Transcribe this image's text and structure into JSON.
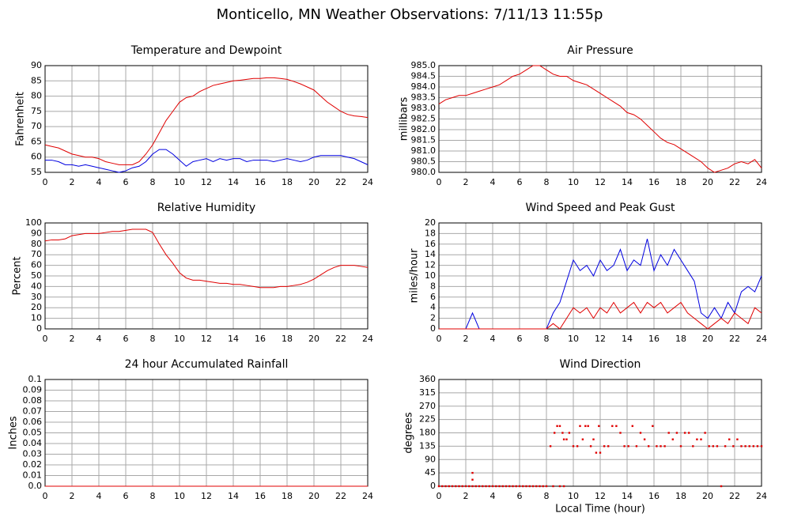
{
  "title": "Monticello, MN Weather Observations: 7/11/13 11:55p",
  "chart_data": [
    {
      "type": "line",
      "title": "Temperature and Dewpoint",
      "ylabel": "Fahrenheit",
      "x": [
        0,
        0.5,
        1,
        1.5,
        2,
        2.5,
        3,
        3.5,
        4,
        4.5,
        5,
        5.5,
        6,
        6.5,
        7,
        7.5,
        8,
        8.5,
        9,
        9.5,
        10,
        10.5,
        11,
        11.5,
        12,
        12.5,
        13,
        13.5,
        14,
        14.5,
        15,
        15.5,
        16,
        16.5,
        17,
        17.5,
        18,
        18.5,
        19,
        19.5,
        20,
        20.5,
        21,
        21.5,
        22,
        22.5,
        23,
        23.5,
        24
      ],
      "series": [
        {
          "color": "#e00000",
          "values": [
            64,
            63.5,
            63,
            62,
            61,
            60.5,
            60,
            60,
            59.5,
            58.5,
            58,
            57.5,
            57.5,
            57.5,
            58.5,
            61,
            64,
            68,
            72,
            75,
            78,
            79.5,
            80,
            81.5,
            82.5,
            83.5,
            84,
            84.5,
            85,
            85.2,
            85.5,
            85.8,
            85.8,
            86,
            86,
            85.8,
            85.5,
            84.8,
            84,
            83,
            82,
            80,
            78,
            76.5,
            75,
            74,
            73.5,
            73.3,
            73
          ]
        },
        {
          "color": "#0000e0",
          "values": [
            59,
            59,
            58.5,
            57.5,
            57.5,
            57,
            57.5,
            57,
            56.5,
            56,
            55.5,
            55,
            55.5,
            56.5,
            57,
            58.5,
            61,
            62.5,
            62.5,
            61,
            59,
            57,
            58.5,
            59,
            59.5,
            58.5,
            59.5,
            59,
            59.5,
            59.5,
            58.5,
            59,
            59,
            59,
            58.5,
            59,
            59.5,
            59,
            58.5,
            59,
            60,
            60.5,
            60.5,
            60.5,
            60.5,
            60,
            59.5,
            58.5,
            57.5
          ]
        }
      ],
      "xlim": [
        0,
        24
      ],
      "xticks": [
        0,
        2,
        4,
        6,
        8,
        10,
        12,
        14,
        16,
        18,
        20,
        22,
        24
      ],
      "ylim": [
        55,
        90
      ],
      "yticks": [
        55,
        60,
        65,
        70,
        75,
        80,
        85,
        90
      ],
      "grid": true
    },
    {
      "type": "line",
      "title": "Air Pressure",
      "ylabel": "millibars",
      "x": [
        0,
        0.5,
        1,
        1.5,
        2,
        2.5,
        3,
        3.5,
        4,
        4.5,
        5,
        5.5,
        6,
        6.5,
        7,
        7.5,
        8,
        8.5,
        9,
        9.5,
        10,
        10.5,
        11,
        11.5,
        12,
        12.5,
        13,
        13.5,
        14,
        14.5,
        15,
        15.5,
        16,
        16.5,
        17,
        17.5,
        18,
        18.5,
        19,
        19.5,
        20,
        20.5,
        21,
        21.5,
        22,
        22.5,
        23,
        23.5,
        24
      ],
      "series": [
        {
          "color": "#e00000",
          "values": [
            983.2,
            983.4,
            983.5,
            983.6,
            983.6,
            983.7,
            983.8,
            983.9,
            984.0,
            984.1,
            984.3,
            984.5,
            984.6,
            984.8,
            985.0,
            985.0,
            984.8,
            984.6,
            984.5,
            984.5,
            984.3,
            984.2,
            984.1,
            983.9,
            983.7,
            983.5,
            983.3,
            983.1,
            982.8,
            982.7,
            982.5,
            982.2,
            981.9,
            981.6,
            981.4,
            981.3,
            981.1,
            980.9,
            980.7,
            980.5,
            980.2,
            980.0,
            980.1,
            980.2,
            980.4,
            980.5,
            980.4,
            980.6,
            980.2
          ]
        }
      ],
      "xlim": [
        0,
        24
      ],
      "xticks": [
        0,
        2,
        4,
        6,
        8,
        10,
        12,
        14,
        16,
        18,
        20,
        22,
        24
      ],
      "ylim": [
        980,
        985
      ],
      "yticks": [
        {
          "value": 980,
          "label": "980.0"
        },
        980.5,
        {
          "value": 981,
          "label": "981.0"
        },
        981.5,
        {
          "value": 982,
          "label": "982.0"
        },
        982.5,
        {
          "value": 983,
          "label": "983.0"
        },
        983.5,
        {
          "value": 984,
          "label": "984.0"
        },
        984.5,
        {
          "value": 985,
          "label": "985.0"
        }
      ],
      "grid": true
    },
    {
      "type": "line",
      "title": "Relative Humidity",
      "ylabel": "Percent",
      "x": [
        0,
        0.5,
        1,
        1.5,
        2,
        2.5,
        3,
        3.5,
        4,
        4.5,
        5,
        5.5,
        6,
        6.5,
        7,
        7.5,
        8,
        8.5,
        9,
        9.5,
        10,
        10.5,
        11,
        11.5,
        12,
        12.5,
        13,
        13.5,
        14,
        14.5,
        15,
        15.5,
        16,
        16.5,
        17,
        17.5,
        18,
        18.5,
        19,
        19.5,
        20,
        20.5,
        21,
        21.5,
        22,
        22.5,
        23,
        23.5,
        24
      ],
      "series": [
        {
          "color": "#e00000",
          "values": [
            83,
            84,
            84,
            85,
            88,
            89,
            90,
            90,
            90,
            91,
            92,
            92,
            93,
            94,
            94,
            94,
            91,
            80,
            70,
            62,
            53,
            48,
            46,
            46,
            45,
            44,
            43,
            43,
            42,
            42,
            41,
            40,
            39,
            39,
            39,
            40,
            40,
            41,
            42,
            44,
            47,
            51,
            55,
            58,
            60,
            60,
            60,
            59,
            58
          ]
        }
      ],
      "xlim": [
        0,
        24
      ],
      "xticks": [
        0,
        2,
        4,
        6,
        8,
        10,
        12,
        14,
        16,
        18,
        20,
        22,
        24
      ],
      "ylim": [
        0,
        100
      ],
      "yticks": [
        0,
        10,
        20,
        30,
        40,
        50,
        60,
        70,
        80,
        90,
        100
      ],
      "grid": true
    },
    {
      "type": "line",
      "title": "Wind Speed and Peak Gust",
      "ylabel": "miles/hour",
      "x": [
        0,
        0.5,
        1,
        1.5,
        2,
        2.5,
        3,
        3.5,
        4,
        4.5,
        5,
        5.5,
        6,
        6.5,
        7,
        7.5,
        8,
        8.5,
        9,
        9.5,
        10,
        10.5,
        11,
        11.5,
        12,
        12.5,
        13,
        13.5,
        14,
        14.5,
        15,
        15.5,
        16,
        16.5,
        17,
        17.5,
        18,
        18.5,
        19,
        19.5,
        20,
        20.5,
        21,
        21.5,
        22,
        22.5,
        23,
        23.5,
        24
      ],
      "series": [
        {
          "color": "#0000e0",
          "values": [
            0,
            0,
            0,
            0,
            0,
            3,
            0,
            0,
            0,
            0,
            0,
            0,
            0,
            0,
            0,
            0,
            0,
            3,
            5,
            9,
            13,
            11,
            12,
            10,
            13,
            11,
            12,
            15,
            11,
            13,
            12,
            17,
            11,
            14,
            12,
            15,
            13,
            11,
            9,
            3,
            2,
            4,
            2,
            5,
            3,
            7,
            8,
            7,
            10
          ]
        },
        {
          "color": "#e00000",
          "values": [
            0,
            0,
            0,
            0,
            0,
            0,
            0,
            0,
            0,
            0,
            0,
            0,
            0,
            0,
            0,
            0,
            0,
            1,
            0,
            2,
            4,
            3,
            4,
            2,
            4,
            3,
            5,
            3,
            4,
            5,
            3,
            5,
            4,
            5,
            3,
            4,
            5,
            3,
            2,
            1,
            0,
            1,
            2,
            1,
            3,
            2,
            1,
            4,
            3
          ]
        }
      ],
      "xlim": [
        0,
        24
      ],
      "xticks": [
        0,
        2,
        4,
        6,
        8,
        10,
        12,
        14,
        16,
        18,
        20,
        22,
        24
      ],
      "ylim": [
        0,
        20
      ],
      "yticks": [
        0,
        2,
        4,
        6,
        8,
        10,
        12,
        14,
        16,
        18,
        20
      ],
      "grid": true
    },
    {
      "type": "line",
      "title": "24 hour Accumulated Rainfall",
      "ylabel": "Inches",
      "x": [
        0,
        0.5,
        1,
        1.5,
        2,
        2.5,
        3,
        3.5,
        4,
        4.5,
        5,
        5.5,
        6,
        6.5,
        7,
        7.5,
        8,
        8.5,
        9,
        9.5,
        10,
        10.5,
        11,
        11.5,
        12,
        12.5,
        13,
        13.5,
        14,
        14.5,
        15,
        15.5,
        16,
        16.5,
        17,
        17.5,
        18,
        18.5,
        19,
        19.5,
        20,
        20.5,
        21,
        21.5,
        22,
        22.5,
        23,
        23.5,
        24
      ],
      "series": [
        {
          "color": "#e00000",
          "values": [
            0,
            0,
            0,
            0,
            0,
            0,
            0,
            0,
            0,
            0,
            0,
            0,
            0,
            0,
            0,
            0,
            0,
            0,
            0,
            0,
            0,
            0,
            0,
            0,
            0,
            0,
            0,
            0,
            0,
            0,
            0,
            0,
            0,
            0,
            0,
            0,
            0,
            0,
            0,
            0,
            0,
            0,
            0,
            0,
            0,
            0,
            0,
            0,
            0
          ]
        }
      ],
      "xlim": [
        0,
        24
      ],
      "xticks": [
        0,
        2,
        4,
        6,
        8,
        10,
        12,
        14,
        16,
        18,
        20,
        22,
        24
      ],
      "ylim": [
        0,
        0.1
      ],
      "yticks": [
        {
          "value": 0,
          "label": "0.0"
        },
        0.01,
        0.02,
        0.03,
        0.04,
        0.05,
        0.06,
        0.07,
        0.08,
        0.09,
        0.1
      ],
      "grid": true
    },
    {
      "type": "scatter",
      "title": "Wind Direction",
      "ylabel": "degrees",
      "xlabel": "Local Time (hour)",
      "color": "#e00000",
      "x": [
        0,
        0.25,
        0.5,
        0.75,
        1,
        1.25,
        1.5,
        1.75,
        2,
        2.25,
        2.5,
        2.75,
        3,
        3.25,
        3.5,
        3.75,
        4,
        4.25,
        4.5,
        4.75,
        5,
        5.25,
        5.5,
        5.75,
        6,
        6.25,
        6.5,
        6.75,
        7,
        7.25,
        7.5,
        7.75,
        8,
        8.5,
        9,
        9.3,
        2.5,
        2.5,
        8.3,
        8.6,
        8.8,
        9.0,
        9.2,
        9.3,
        9.5,
        9.7,
        10,
        10.3,
        10.5,
        10.7,
        10.9,
        11.1,
        11.3,
        11.5,
        11.7,
        11.9,
        12,
        12.3,
        12.6,
        12.9,
        13.2,
        13.5,
        13.8,
        14.1,
        14.4,
        14.7,
        15,
        15.3,
        15.6,
        15.9,
        16.2,
        16.5,
        16.8,
        17.1,
        17.4,
        17.7,
        18,
        18.3,
        18.6,
        18.9,
        19.2,
        19.5,
        19.8,
        20.1,
        20.4,
        20.7,
        21,
        21.3,
        21.6,
        21.9,
        22.2,
        22.5,
        22.8,
        23.1,
        23.4,
        23.7,
        24
      ],
      "values": [
        0,
        0,
        0,
        0,
        0,
        0,
        0,
        0,
        0,
        0,
        0,
        0,
        0,
        0,
        0,
        0,
        0,
        0,
        0,
        0,
        0,
        0,
        0,
        0,
        0,
        0,
        0,
        0,
        0,
        0,
        0,
        0,
        0,
        0,
        0,
        0,
        22,
        45,
        135,
        180,
        203,
        203,
        180,
        158,
        158,
        180,
        135,
        135,
        203,
        158,
        203,
        203,
        135,
        158,
        113,
        203,
        113,
        135,
        135,
        203,
        203,
        180,
        135,
        135,
        203,
        135,
        180,
        158,
        135,
        203,
        135,
        135,
        135,
        180,
        158,
        180,
        135,
        180,
        180,
        135,
        158,
        158,
        180,
        135,
        135,
        135,
        0,
        135,
        158,
        135,
        158,
        135,
        135,
        135,
        135,
        135,
        135
      ],
      "xlim": [
        0,
        24
      ],
      "xticks": [
        0,
        2,
        4,
        6,
        8,
        10,
        12,
        14,
        16,
        18,
        20,
        22,
        24
      ],
      "ylim": [
        0,
        360
      ],
      "yticks": [
        0,
        45,
        90,
        135,
        180,
        225,
        270,
        315,
        360
      ],
      "grid": true
    }
  ]
}
